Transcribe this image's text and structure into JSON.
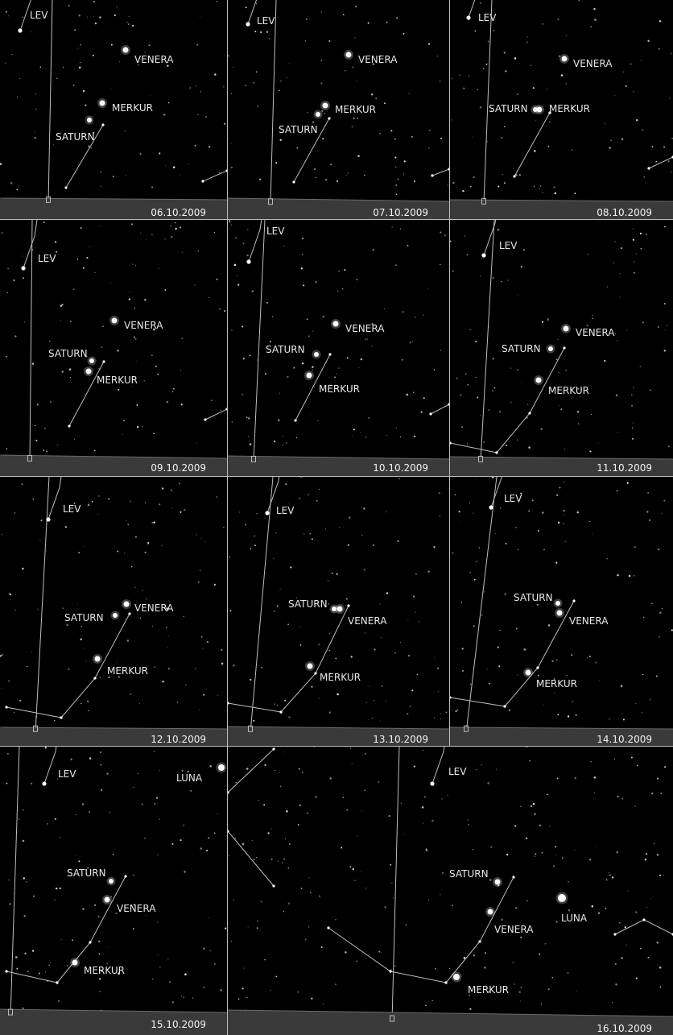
{
  "labels": {
    "lev": "LEV",
    "venera": "VENERA",
    "merkur": "MERKUR",
    "saturn": "SATURN",
    "luna": "LUNA"
  },
  "panels": [
    {
      "date": "06.10.2009"
    },
    {
      "date": "07.10.2009"
    },
    {
      "date": "08.10.2009"
    },
    {
      "date": "09.10.2009"
    },
    {
      "date": "10.10.2009"
    },
    {
      "date": "11.10.2009"
    },
    {
      "date": "12.10.2009"
    },
    {
      "date": "13.10.2009"
    },
    {
      "date": "14.10.2009"
    },
    {
      "date": "15.10.2009"
    },
    {
      "date": "16.10.2009"
    }
  ],
  "colors": {
    "sky": "#000000",
    "ground": "#3a3a3a",
    "line": "#bfbfbf",
    "text": "#e8e8e8"
  }
}
